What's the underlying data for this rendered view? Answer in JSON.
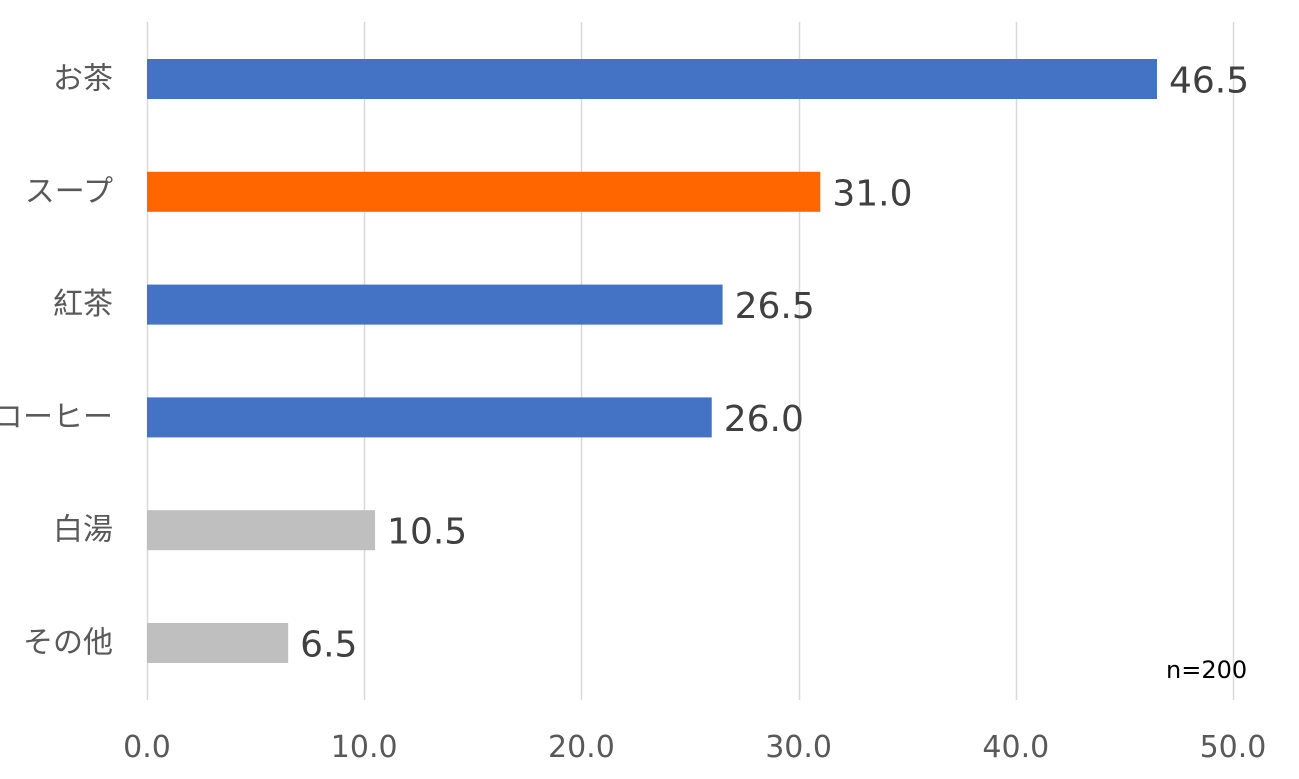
{
  "chart_data": {
    "type": "bar",
    "orientation": "horizontal",
    "categories": [
      "お茶",
      "スープ",
      "紅茶",
      "コーヒー",
      "白湯",
      "その他"
    ],
    "values": [
      46.5,
      31.0,
      26.5,
      26.0,
      10.5,
      6.5
    ],
    "value_labels": [
      "46.5",
      "31.0",
      "26.5",
      "26.0",
      "10.5",
      "6.5"
    ],
    "bar_colors": [
      "#4472C4",
      "#FF6600",
      "#4472C4",
      "#4472C4",
      "#BFBFBF",
      "#BFBFBF"
    ],
    "xlim": [
      0,
      50
    ],
    "xticks": [
      0,
      10,
      20,
      30,
      40,
      50
    ],
    "xtick_labels": [
      "0.0",
      "10.0",
      "20.0",
      "30.0",
      "40.0",
      "50.0"
    ],
    "grid": "vertical",
    "legend": "none",
    "sample_note": "n=200"
  }
}
